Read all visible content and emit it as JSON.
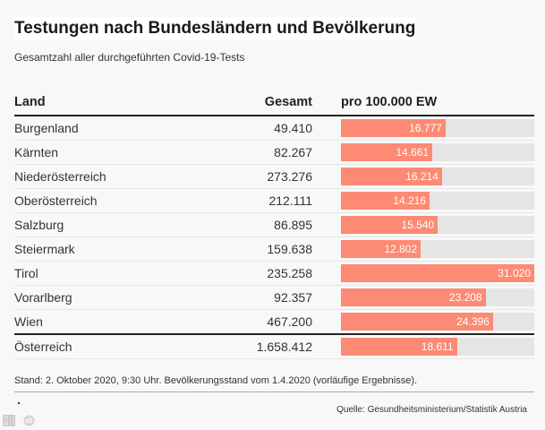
{
  "header": {
    "title": "Testungen nach Bundesländern und Bevölkerung",
    "subtitle": "Gesamtzahl aller durchgeführten Covid-19-Tests"
  },
  "table": {
    "columns": [
      "Land",
      "Gesamt",
      "pro 100.000 EW"
    ],
    "rows": [
      {
        "land": "Burgenland",
        "gesamt": "49.410",
        "pro": "16.777"
      },
      {
        "land": "Kärnten",
        "gesamt": "82.267",
        "pro": "14.661"
      },
      {
        "land": "Niederösterreich",
        "gesamt": "273.276",
        "pro": "16.214"
      },
      {
        "land": "Oberösterreich",
        "gesamt": "212.111",
        "pro": "14.216"
      },
      {
        "land": "Salzburg",
        "gesamt": "86.895",
        "pro": "15.540"
      },
      {
        "land": "Steiermark",
        "gesamt": "159.638",
        "pro": "12.802"
      },
      {
        "land": "Tirol",
        "gesamt": "235.258",
        "pro": "31.020"
      },
      {
        "land": "Vorarlberg",
        "gesamt": "92.357",
        "pro": "23.208"
      },
      {
        "land": "Wien",
        "gesamt": "467.200",
        "pro": "24.396"
      }
    ],
    "total": {
      "land": "Österreich",
      "gesamt": "1.658.412",
      "pro": "18.611"
    }
  },
  "footer": {
    "note": "Stand: 2. Oktober 2020, 9:30 Uhr. Bevölkerungsstand vom 1.4.2020 (vorläufige Ergebnisse).",
    "source": "Quelle: Gesundheitsministerium/Statistik Austria",
    "icons": [
      "document-icon",
      "code-embed-icon"
    ]
  },
  "colors": {
    "bar": "#fc8a74",
    "track": "#e5e5e5",
    "background": "#f8f8f8"
  },
  "chart_data": {
    "type": "table",
    "title": "Testungen nach Bundesländern und Bevölkerung",
    "subtitle": "Gesamtzahl aller durchgeführten Covid-19-Tests",
    "columns": [
      "Land",
      "Gesamt",
      "pro 100.000 EW"
    ],
    "categories": [
      "Burgenland",
      "Kärnten",
      "Niederösterreich",
      "Oberösterreich",
      "Salzburg",
      "Steiermark",
      "Tirol",
      "Vorarlberg",
      "Wien",
      "Österreich"
    ],
    "series": [
      {
        "name": "Gesamt",
        "values": [
          49410,
          82267,
          273276,
          212111,
          86895,
          159638,
          235258,
          92357,
          467200,
          1658412
        ]
      },
      {
        "name": "pro 100.000 EW",
        "values": [
          16777,
          14661,
          16214,
          14216,
          15540,
          12802,
          31020,
          23208,
          24396,
          18611
        ],
        "display": "bar",
        "max": 31020
      }
    ],
    "note": "Stand: 2. Oktober 2020, 9:30 Uhr. Bevölkerungsstand vom 1.4.2020 (vorläufige Ergebnisse).",
    "source": "Quelle: Gesundheitsministerium/Statistik Austria"
  }
}
